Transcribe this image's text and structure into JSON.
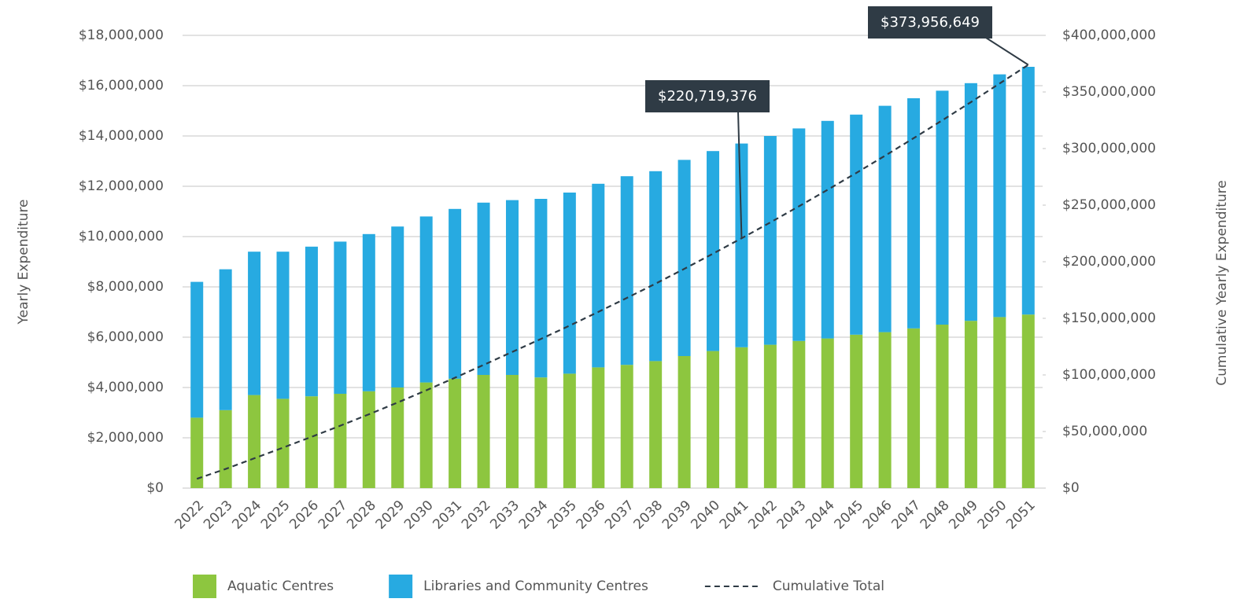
{
  "chart_data": {
    "type": "bar",
    "stacked": true,
    "y_label": "Yearly Expenditure",
    "y2_label": "Cumulative Yearly Expenditure",
    "categories": [
      "2022",
      "2023",
      "2024",
      "2025",
      "2026",
      "2027",
      "2028",
      "2029",
      "2030",
      "2031",
      "2032",
      "2033",
      "2034",
      "2035",
      "2036",
      "2037",
      "2038",
      "2039",
      "2040",
      "2041",
      "2042",
      "2043",
      "2044",
      "2045",
      "2046",
      "2047",
      "2048",
      "2049",
      "2050",
      "2051"
    ],
    "series": [
      {
        "name": "Aquatic Centres",
        "color": "#8dc63f",
        "values": [
          2800000,
          3100000,
          3700000,
          3550000,
          3650000,
          3750000,
          3850000,
          4000000,
          4200000,
          4350000,
          4500000,
          4500000,
          4400000,
          4550000,
          4800000,
          4900000,
          5050000,
          5250000,
          5450000,
          5600000,
          5700000,
          5850000,
          5950000,
          6100000,
          6200000,
          6350000,
          6500000,
          6650000,
          6800000,
          6900000
        ]
      },
      {
        "name": "Libraries and Community Centres",
        "color": "#27aae1",
        "values": [
          5400000,
          5600000,
          5700000,
          5850000,
          5950000,
          6050000,
          6250000,
          6400000,
          6600000,
          6750000,
          6850000,
          6950000,
          7100000,
          7200000,
          7300000,
          7500000,
          7550000,
          7800000,
          7950000,
          8100000,
          8300000,
          8450000,
          8650000,
          8750000,
          9000000,
          9150000,
          9300000,
          9450000,
          9650000,
          9850000
        ]
      },
      {
        "name": "Cumulative Total",
        "type": "line",
        "axis": "y2",
        "color": "#2f3b45",
        "dashed": true,
        "values": [
          8200000,
          16900000,
          26300000,
          35700000,
          45300000,
          55100000,
          65200000,
          75600000,
          86400000,
          97500000,
          108850000,
          120300000,
          131800000,
          143550000,
          155650000,
          168050000,
          180650000,
          193700000,
          207100000,
          220719376,
          234700000,
          249000000,
          263600000,
          278450000,
          293650000,
          309150000,
          324950000,
          341050000,
          357500000,
          373956649
        ]
      }
    ],
    "annotations": [
      {
        "category": "2041",
        "value": 220719376,
        "label": "$220,719,376"
      },
      {
        "category": "2051",
        "value": 373956649,
        "label": "$373,956,649"
      }
    ],
    "ylim": [
      0,
      18000000
    ],
    "yticks": [
      {
        "value": 0,
        "label": "$0"
      },
      {
        "value": 2000000,
        "label": "$2,000,000"
      },
      {
        "value": 4000000,
        "label": "$4,000,000"
      },
      {
        "value": 6000000,
        "label": "$6,000,000"
      },
      {
        "value": 8000000,
        "label": "$8,000,000"
      },
      {
        "value": 10000000,
        "label": "$10,000,000"
      },
      {
        "value": 12000000,
        "label": "$12,000,000"
      },
      {
        "value": 14000000,
        "label": "$14,000,000"
      },
      {
        "value": 16000000,
        "label": "$16,000,000"
      },
      {
        "value": 18000000,
        "label": "$18,000,000"
      }
    ],
    "y2lim": [
      0,
      400000000
    ],
    "y2ticks": [
      {
        "value": 0,
        "label": "$0"
      },
      {
        "value": 50000000,
        "label": "$50,000,000"
      },
      {
        "value": 100000000,
        "label": "$100,000,000"
      },
      {
        "value": 150000000,
        "label": "$150,000,000"
      },
      {
        "value": 200000000,
        "label": "$200,000,000"
      },
      {
        "value": 250000000,
        "label": "$250,000,000"
      },
      {
        "value": 300000000,
        "label": "$300,000,000"
      },
      {
        "value": 350000000,
        "label": "$350,000,000"
      },
      {
        "value": 400000000,
        "label": "$400,000,000"
      }
    ],
    "grid": true,
    "legend": "bottom"
  }
}
